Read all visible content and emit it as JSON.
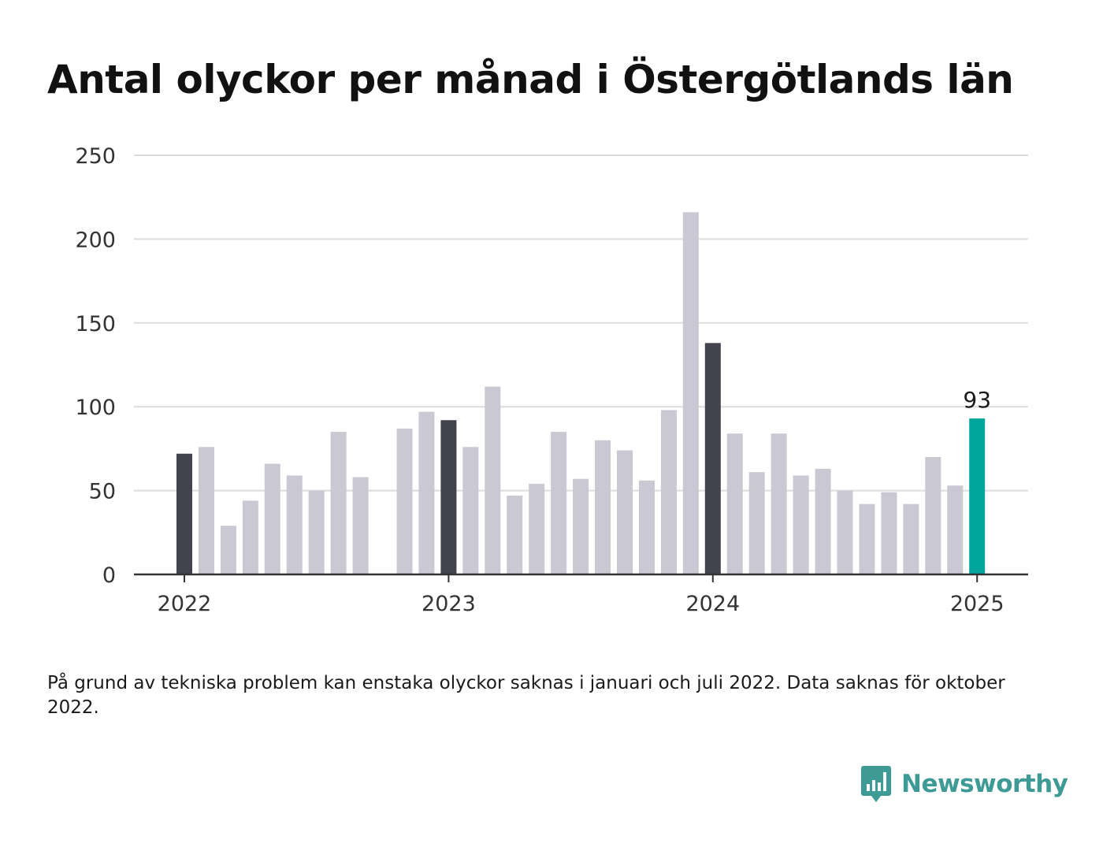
{
  "title": "Antal olyckor per månad i Östergötlands län",
  "note": "På grund av tekniska problem kan enstaka olyckor saknas i januari och juli 2022. Data saknas för oktober 2022.",
  "brand": {
    "name": "Newsworthy",
    "color": "#3d9a95"
  },
  "colors": {
    "january": "#43424f",
    "other": "#c9c8d3",
    "latest": "#00a69c",
    "grid": "#dcdcdc",
    "axis": "#333333"
  },
  "chart_data": {
    "type": "bar",
    "ylim": [
      0,
      250
    ],
    "yticks": [
      0,
      50,
      100,
      150,
      200,
      250
    ],
    "xticks": [
      "2022",
      "2023",
      "2024",
      "2025"
    ],
    "grid": true,
    "annotation": "93",
    "categories": [
      "2022-01",
      "2022-02",
      "2022-03",
      "2022-04",
      "2022-05",
      "2022-06",
      "2022-07",
      "2022-08",
      "2022-09",
      "2022-10",
      "2022-11",
      "2022-12",
      "2023-01",
      "2023-02",
      "2023-03",
      "2023-04",
      "2023-05",
      "2023-06",
      "2023-07",
      "2023-08",
      "2023-09",
      "2023-10",
      "2023-11",
      "2023-12",
      "2024-01",
      "2024-02",
      "2024-03",
      "2024-04",
      "2024-05",
      "2024-06",
      "2024-07",
      "2024-08",
      "2024-09",
      "2024-10",
      "2024-11",
      "2024-12",
      "2025-01"
    ],
    "values": [
      72,
      76,
      29,
      44,
      66,
      59,
      50,
      85,
      58,
      null,
      87,
      97,
      92,
      76,
      112,
      47,
      54,
      85,
      57,
      80,
      74,
      56,
      98,
      216,
      138,
      84,
      61,
      84,
      59,
      63,
      50,
      42,
      49,
      42,
      70,
      53,
      93
    ]
  }
}
